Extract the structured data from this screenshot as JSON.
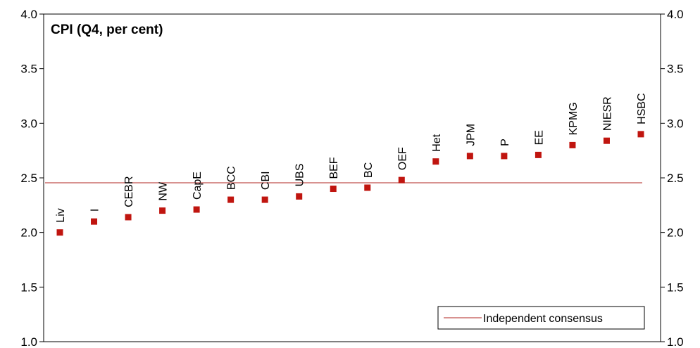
{
  "chart_data": {
    "type": "scatter",
    "title": "CPI (Q4, per cent)",
    "xlabel": "",
    "ylabel": "",
    "ylim": [
      1.0,
      4.0
    ],
    "yticks": [
      "1.0",
      "1.5",
      "2.0",
      "2.5",
      "3.0",
      "3.5",
      "4.0"
    ],
    "categories": [
      "Liv",
      "I",
      "CEBR",
      "NW",
      "CapE",
      "BCC",
      "CBI",
      "UBS",
      "BEF",
      "BC",
      "OEF",
      "Het",
      "JPM",
      "P",
      "EE",
      "KPMG",
      "NIESR",
      "HSBC"
    ],
    "values": [
      2.0,
      2.1,
      2.14,
      2.2,
      2.21,
      2.3,
      2.3,
      2.33,
      2.4,
      2.41,
      2.48,
      2.65,
      2.7,
      2.7,
      2.71,
      2.8,
      2.84,
      2.9
    ],
    "marker_color": "#c0150f",
    "reference_line": {
      "name": "Independent consensus",
      "value": 2.455,
      "color": "#c0504d"
    },
    "legend_position": "bottom-right",
    "grid": false
  }
}
